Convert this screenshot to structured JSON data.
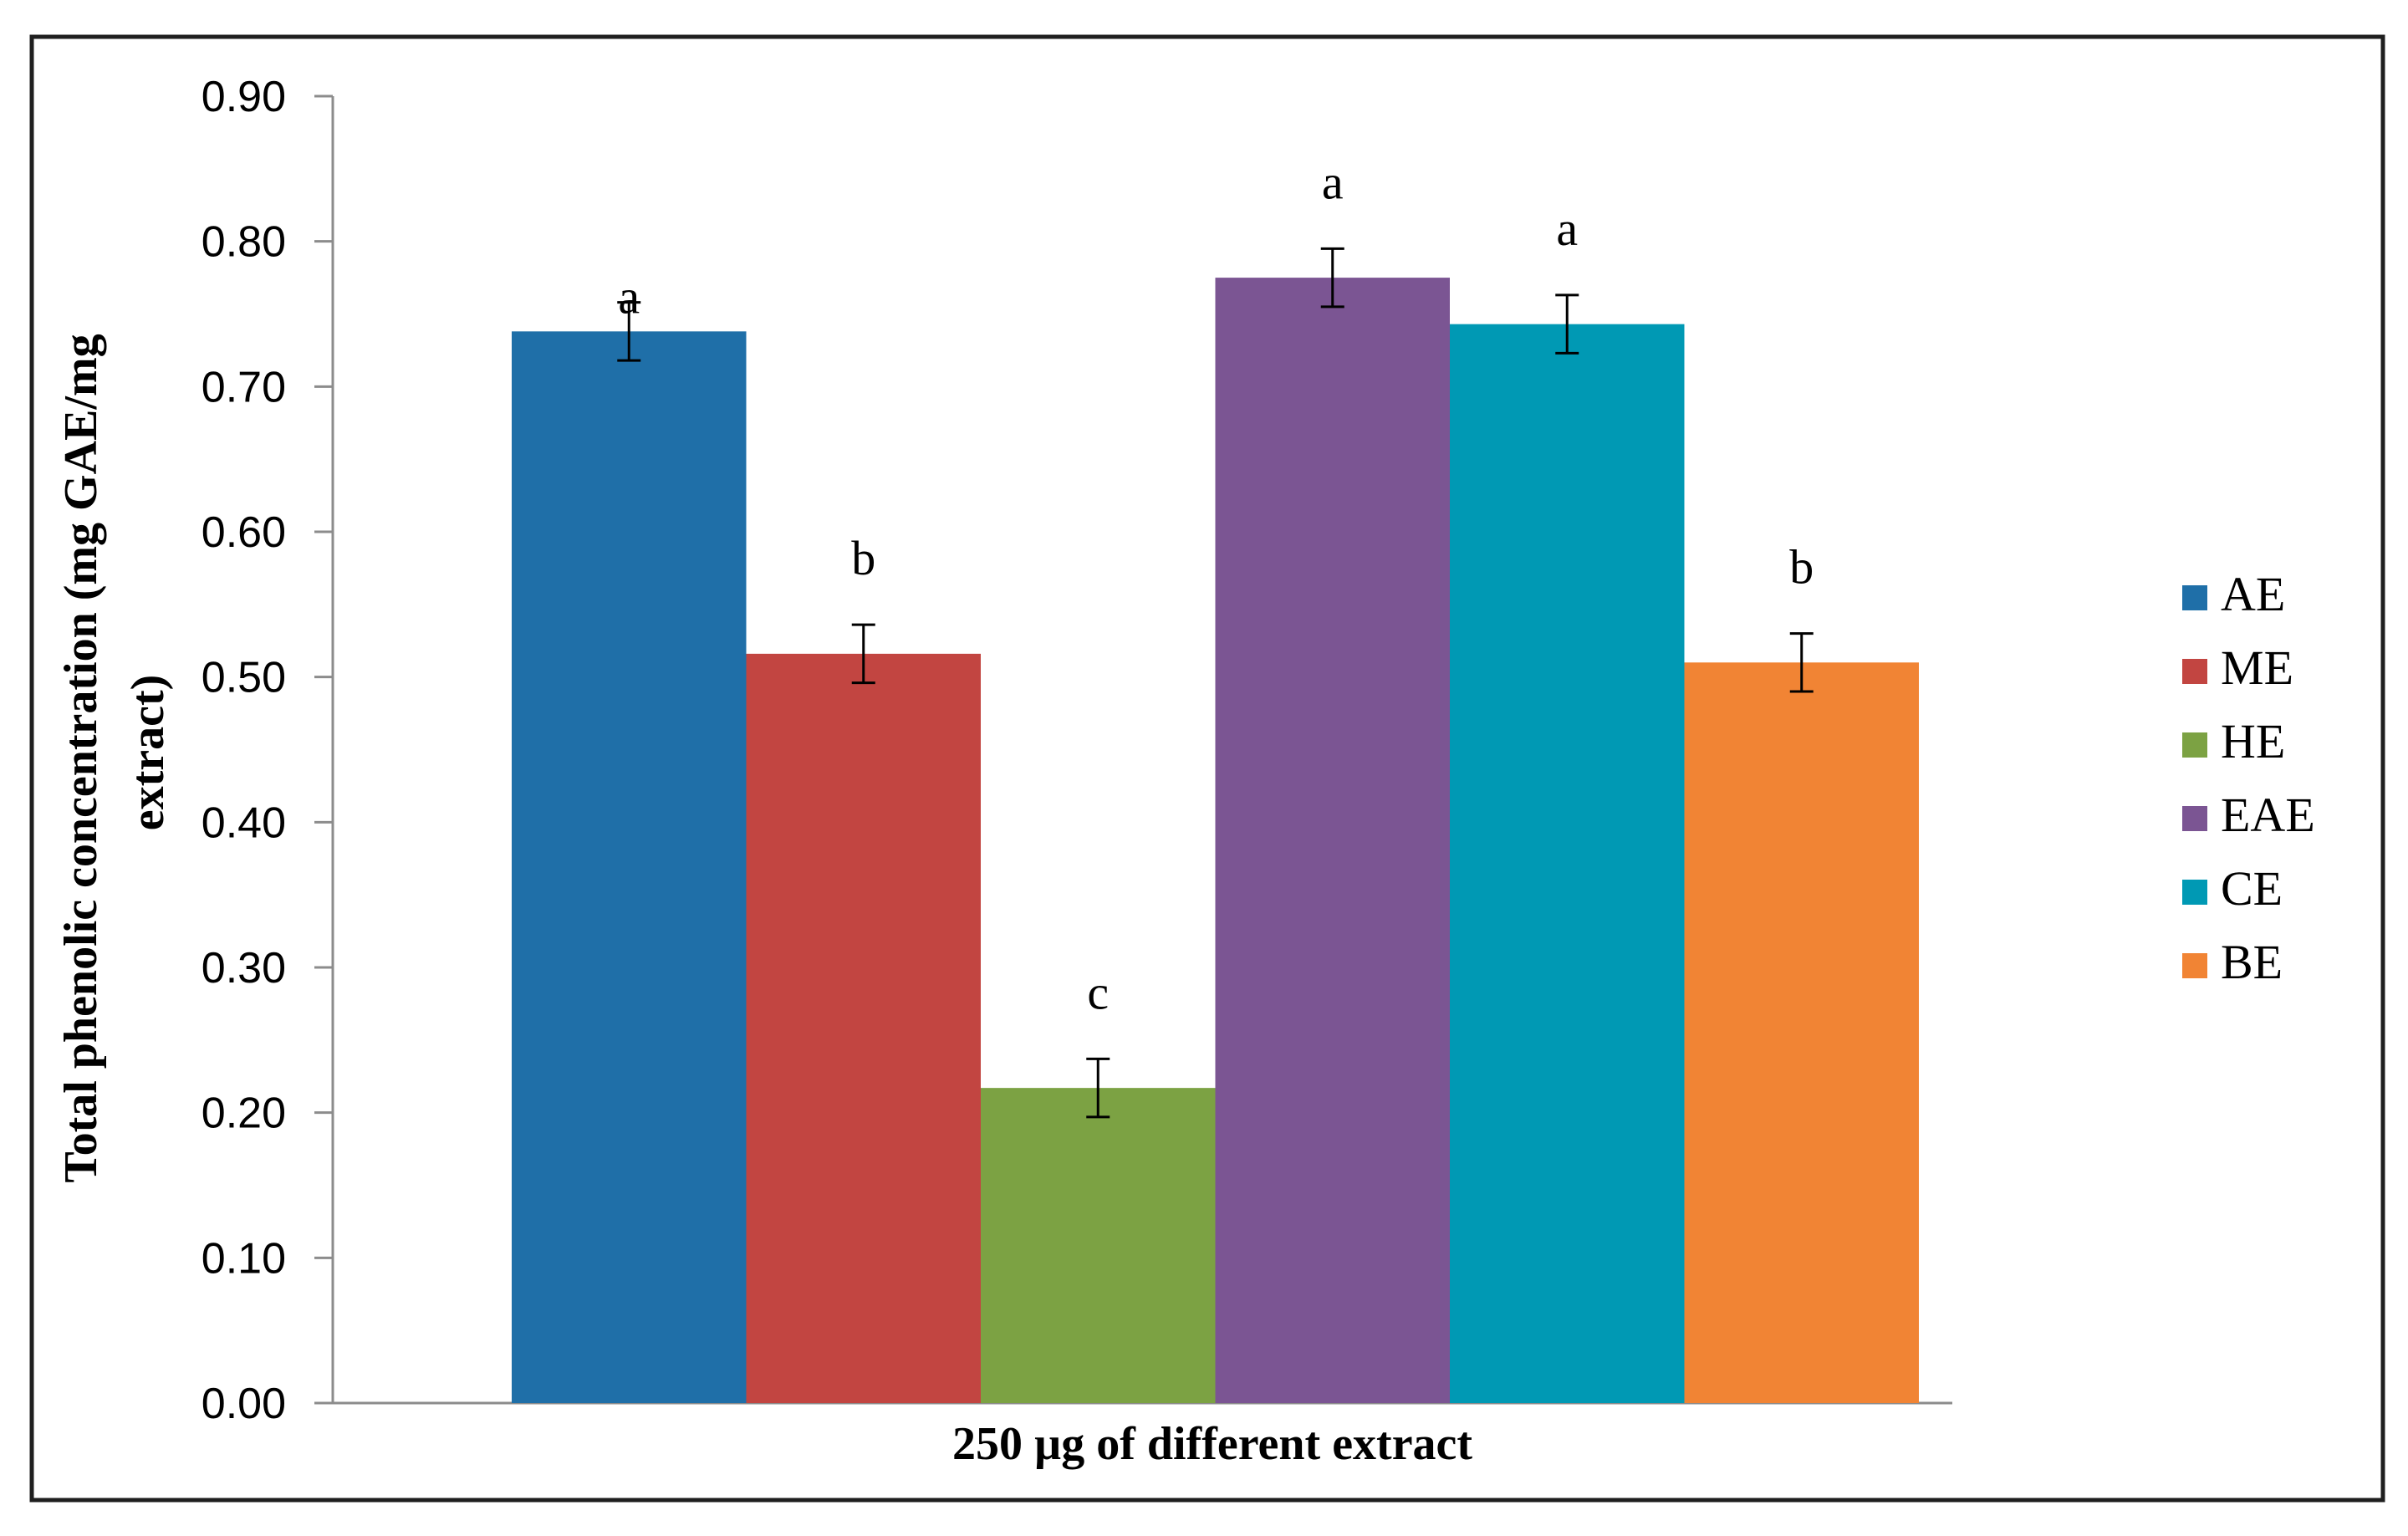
{
  "chart_data": {
    "type": "bar",
    "xlabel": "250 µg of different  extract",
    "ylabel_line1": "Total phenolic concentration (mg GAE/mg",
    "ylabel_line2": "extract)",
    "ylim": [
      0,
      0.9
    ],
    "yticks": [
      "0.00",
      "0.10",
      "0.20",
      "0.30",
      "0.40",
      "0.50",
      "0.60",
      "0.70",
      "0.80",
      "0.90"
    ],
    "grid": false,
    "legend_position": "right",
    "series": [
      {
        "name": "AE",
        "value": 0.738,
        "error": 0.02,
        "label": "a",
        "color": "#1f6fa8"
      },
      {
        "name": "ME",
        "value": 0.516,
        "error": 0.02,
        "label": "b",
        "color": "#c24541"
      },
      {
        "name": "HE",
        "value": 0.217,
        "error": 0.02,
        "label": "c",
        "color": "#7ca243"
      },
      {
        "name": "EAE",
        "value": 0.775,
        "error": 0.02,
        "label": "a",
        "color": "#7b5593"
      },
      {
        "name": "CE",
        "value": 0.743,
        "error": 0.02,
        "label": "a",
        "color": "#0099b4"
      },
      {
        "name": "BE",
        "value": 0.51,
        "error": 0.02,
        "label": "b",
        "color": "#f18434"
      }
    ]
  }
}
